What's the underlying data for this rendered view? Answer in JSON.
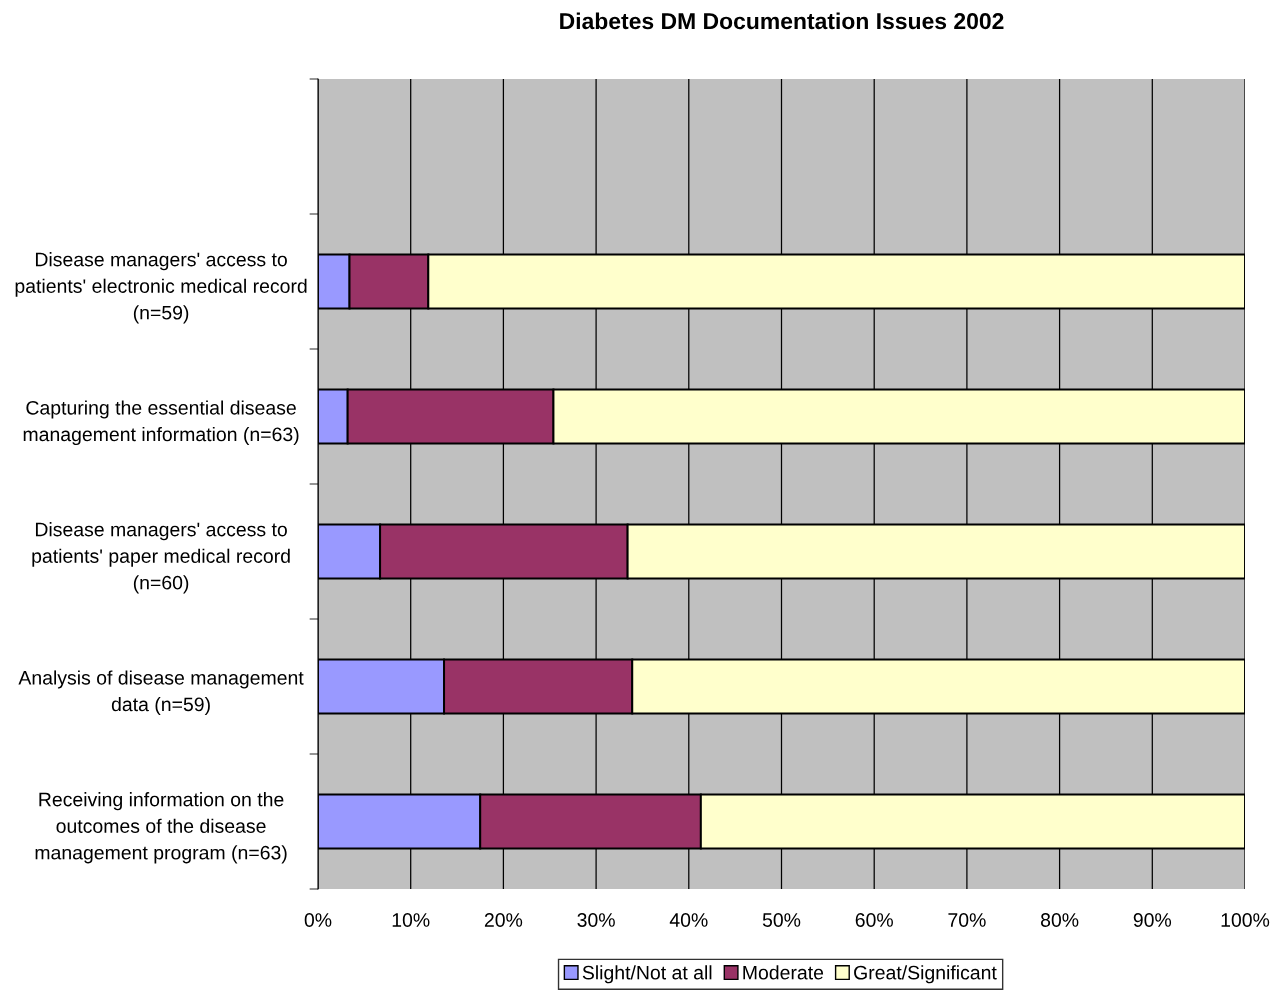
{
  "chart_data": {
    "type": "bar",
    "orientation": "horizontal",
    "stacked": true,
    "title": "Diabetes DM Documentation Issues 2002",
    "categories": [
      null,
      "Disease managers' access to\npatients' electronic medical record\n(n=59)",
      "Capturing the essential disease\nmanagement information (n=63)",
      "Disease managers' access to\npatients' paper medical record\n(n=60)",
      "Analysis of disease management\ndata (n=59)",
      "Receiving information on the\noutcomes of the disease\nmanagement program (n=63)"
    ],
    "series": [
      {
        "name": "Slight/Not at all",
        "color": "#9999ff",
        "values": [
          null,
          3.4,
          3.2,
          6.7,
          13.6,
          17.5
        ]
      },
      {
        "name": "Moderate",
        "color": "#993366",
        "values": [
          null,
          8.5,
          22.2,
          26.7,
          20.3,
          23.8
        ]
      },
      {
        "name": "Great/Significant",
        "color": "#ffffcc",
        "values": [
          null,
          88.1,
          74.6,
          66.6,
          66.1,
          58.7
        ]
      }
    ],
    "xlim": [
      0,
      100
    ],
    "xticks": [
      {
        "value": 0,
        "label": "0%"
      },
      {
        "value": 10,
        "label": "10%"
      },
      {
        "value": 20,
        "label": "20%"
      },
      {
        "value": 30,
        "label": "30%"
      },
      {
        "value": 40,
        "label": "40%"
      },
      {
        "value": 50,
        "label": "50%"
      },
      {
        "value": 60,
        "label": "60%"
      },
      {
        "value": 70,
        "label": "70%"
      },
      {
        "value": 80,
        "label": "80%"
      },
      {
        "value": 90,
        "label": "90%"
      },
      {
        "value": 100,
        "label": "100%"
      }
    ],
    "grid": "x",
    "legend": "bottom"
  }
}
